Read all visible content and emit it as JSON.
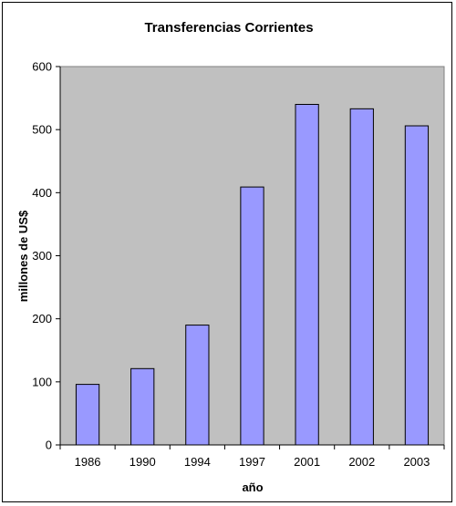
{
  "chart_data": {
    "type": "bar",
    "title": "Transferencias Corrientes",
    "xlabel": "año",
    "ylabel": "millones de US$",
    "categories": [
      "1986",
      "1990",
      "1994",
      "1997",
      "2001",
      "2002",
      "2003"
    ],
    "series": [
      {
        "values": [
          96,
          121,
          190,
          409,
          540,
          533,
          506
        ]
      }
    ],
    "ylim": [
      0,
      600
    ],
    "yticks": [
      0,
      100,
      200,
      300,
      400,
      500,
      600
    ],
    "grid": false,
    "legend": "none",
    "colors": {
      "plot_background": "#C0C0C0",
      "bar_fill": "#9999FF",
      "bar_stroke": "#000000"
    }
  }
}
